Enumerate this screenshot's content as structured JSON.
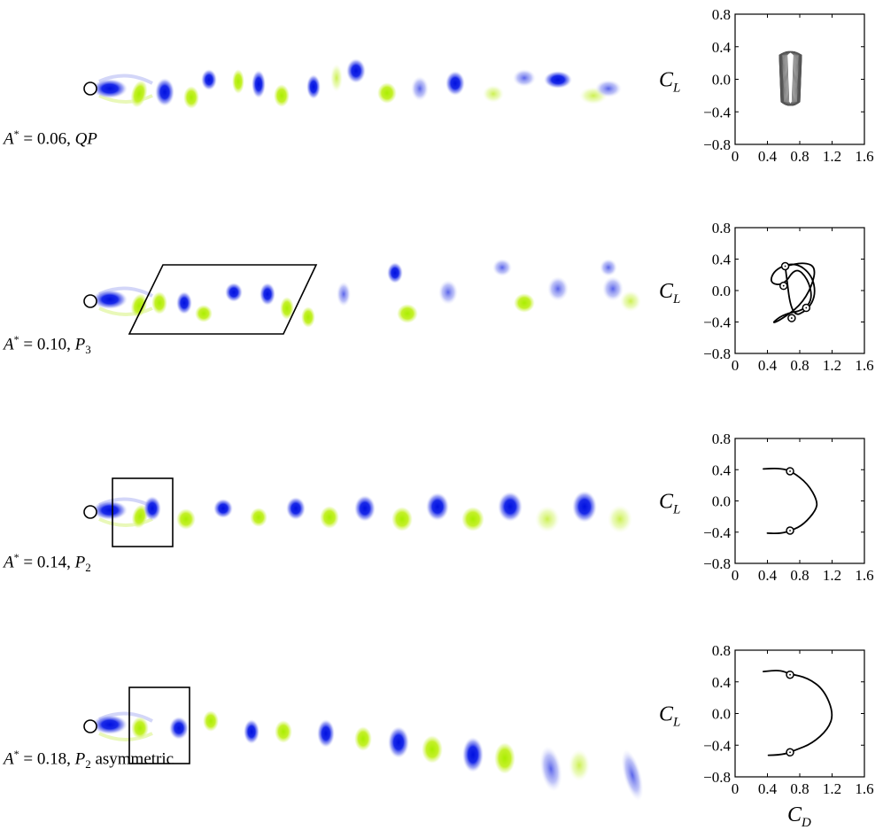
{
  "panels": [
    {
      "amplitude_label": "A* = 0.06, QP",
      "amplitude_value": "0.06",
      "regime": "QP",
      "regime_sub": ""
    },
    {
      "amplitude_label": "A* = 0.10, P3",
      "amplitude_value": "0.10",
      "regime": "P",
      "regime_sub": "3"
    },
    {
      "amplitude_label": "A* = 0.14, P2",
      "amplitude_value": "0.14",
      "regime": "P",
      "regime_sub": "2"
    },
    {
      "amplitude_label": "A* = 0.18, P2 asymmetric",
      "amplitude_value": "0.18",
      "regime": "P",
      "regime_sub": "2",
      "regime_suffix": " asymmetric"
    }
  ],
  "colors": {
    "positive_vortex": "#0a14e6",
    "negative_vortex": "#b8ee14",
    "frame": "#000000"
  },
  "chart_data": [
    {
      "type": "line",
      "title": "",
      "xlabel": "C_D",
      "ylabel": "C_L",
      "xlim": [
        0,
        1.6
      ],
      "ylim": [
        -0.8,
        0.8
      ],
      "xticks": [
        "0",
        "0.4",
        "0.8",
        "1.2",
        "1.6"
      ],
      "yticks": [
        "0.8",
        "0.4",
        "0.0",
        "−0.4",
        "−0.8"
      ],
      "series": [
        {
          "style": "quasi-periodic band",
          "cd_range": [
            0.55,
            0.82
          ],
          "cl_range": [
            -0.32,
            0.34
          ]
        }
      ]
    },
    {
      "type": "line",
      "title": "",
      "xlabel": "C_D",
      "ylabel": "C_L",
      "xlim": [
        0,
        1.6
      ],
      "ylim": [
        -0.8,
        0.8
      ],
      "xticks": [
        "0",
        "0.4",
        "0.8",
        "1.2",
        "1.6"
      ],
      "yticks": [
        "0.8",
        "0.4",
        "0.0",
        "−0.4",
        "−0.8"
      ],
      "series": [
        {
          "x": [
            0.62,
            0.85,
            1.0,
            0.95,
            0.8,
            0.55,
            0.45,
            0.6,
            0.85,
            0.96,
            0.9,
            0.75,
            0.6,
            0.42,
            0.5,
            0.75,
            0.95,
            1.0,
            0.9,
            0.7,
            0.62
          ],
          "y": [
            0.31,
            0.36,
            0.3,
            0.05,
            -0.2,
            -0.38,
            -0.42,
            -0.3,
            -0.25,
            -0.1,
            0.15,
            0.3,
            0.06,
            0.1,
            0.28,
            0.36,
            0.2,
            -0.05,
            -0.25,
            -0.34,
            0.31
          ]
        }
      ],
      "markers": {
        "x": [
          0.62,
          0.6,
          0.88,
          0.7
        ],
        "y": [
          0.31,
          0.06,
          -0.22,
          -0.35
        ]
      }
    },
    {
      "type": "line",
      "title": "",
      "xlabel": "C_D",
      "ylabel": "C_L",
      "xlim": [
        0,
        1.6
      ],
      "ylim": [
        -0.8,
        0.8
      ],
      "xticks": [
        "0",
        "0.4",
        "0.8",
        "1.2",
        "1.6"
      ],
      "yticks": [
        "0.8",
        "0.4",
        "0.0",
        "−0.4",
        "−0.8"
      ],
      "series": [
        {
          "x": [
            0.35,
            0.55,
            0.7,
            0.9,
            1.02,
            1.0,
            0.85,
            0.7,
            0.55,
            0.35,
            0.55,
            0.7,
            0.85,
            1.0,
            1.02,
            0.9,
            0.7,
            0.55,
            0.35
          ],
          "y": [
            0.41,
            0.42,
            0.38,
            0.22,
            0.0,
            -0.12,
            -0.3,
            -0.38,
            -0.42,
            -0.41,
            -0.42,
            -0.38,
            -0.3,
            -0.12,
            0.0,
            0.22,
            0.38,
            0.42,
            0.41
          ]
        }
      ],
      "markers": {
        "x": [
          0.68,
          0.68
        ],
        "y": [
          0.38,
          -0.38
        ]
      }
    },
    {
      "type": "line",
      "title": "",
      "xlabel": "C_D",
      "ylabel": "C_L",
      "xlim": [
        0,
        1.6
      ],
      "ylim": [
        -0.8,
        0.8
      ],
      "xticks": [
        "0",
        "0.4",
        "0.8",
        "1.2",
        "1.6"
      ],
      "yticks": [
        "0.8",
        "0.4",
        "0.0",
        "−0.4",
        "−0.8"
      ],
      "series": [
        {
          "x": [
            0.35,
            0.55,
            0.68,
            0.9,
            1.1,
            1.22,
            1.15,
            0.95,
            0.75,
            0.6,
            0.35,
            0.6,
            0.75,
            0.95,
            1.15,
            1.22,
            1.1,
            0.9,
            0.68,
            0.55,
            0.35
          ],
          "y": [
            0.53,
            0.55,
            0.5,
            0.45,
            0.3,
            0.0,
            -0.2,
            -0.38,
            -0.46,
            -0.52,
            -0.53,
            -0.52,
            -0.46,
            -0.38,
            -0.2,
            0.0,
            0.3,
            0.45,
            0.5,
            0.55,
            0.53
          ]
        }
      ],
      "markers": {
        "x": [
          0.68,
          0.68
        ],
        "y": [
          0.49,
          -0.49
        ]
      }
    }
  ]
}
